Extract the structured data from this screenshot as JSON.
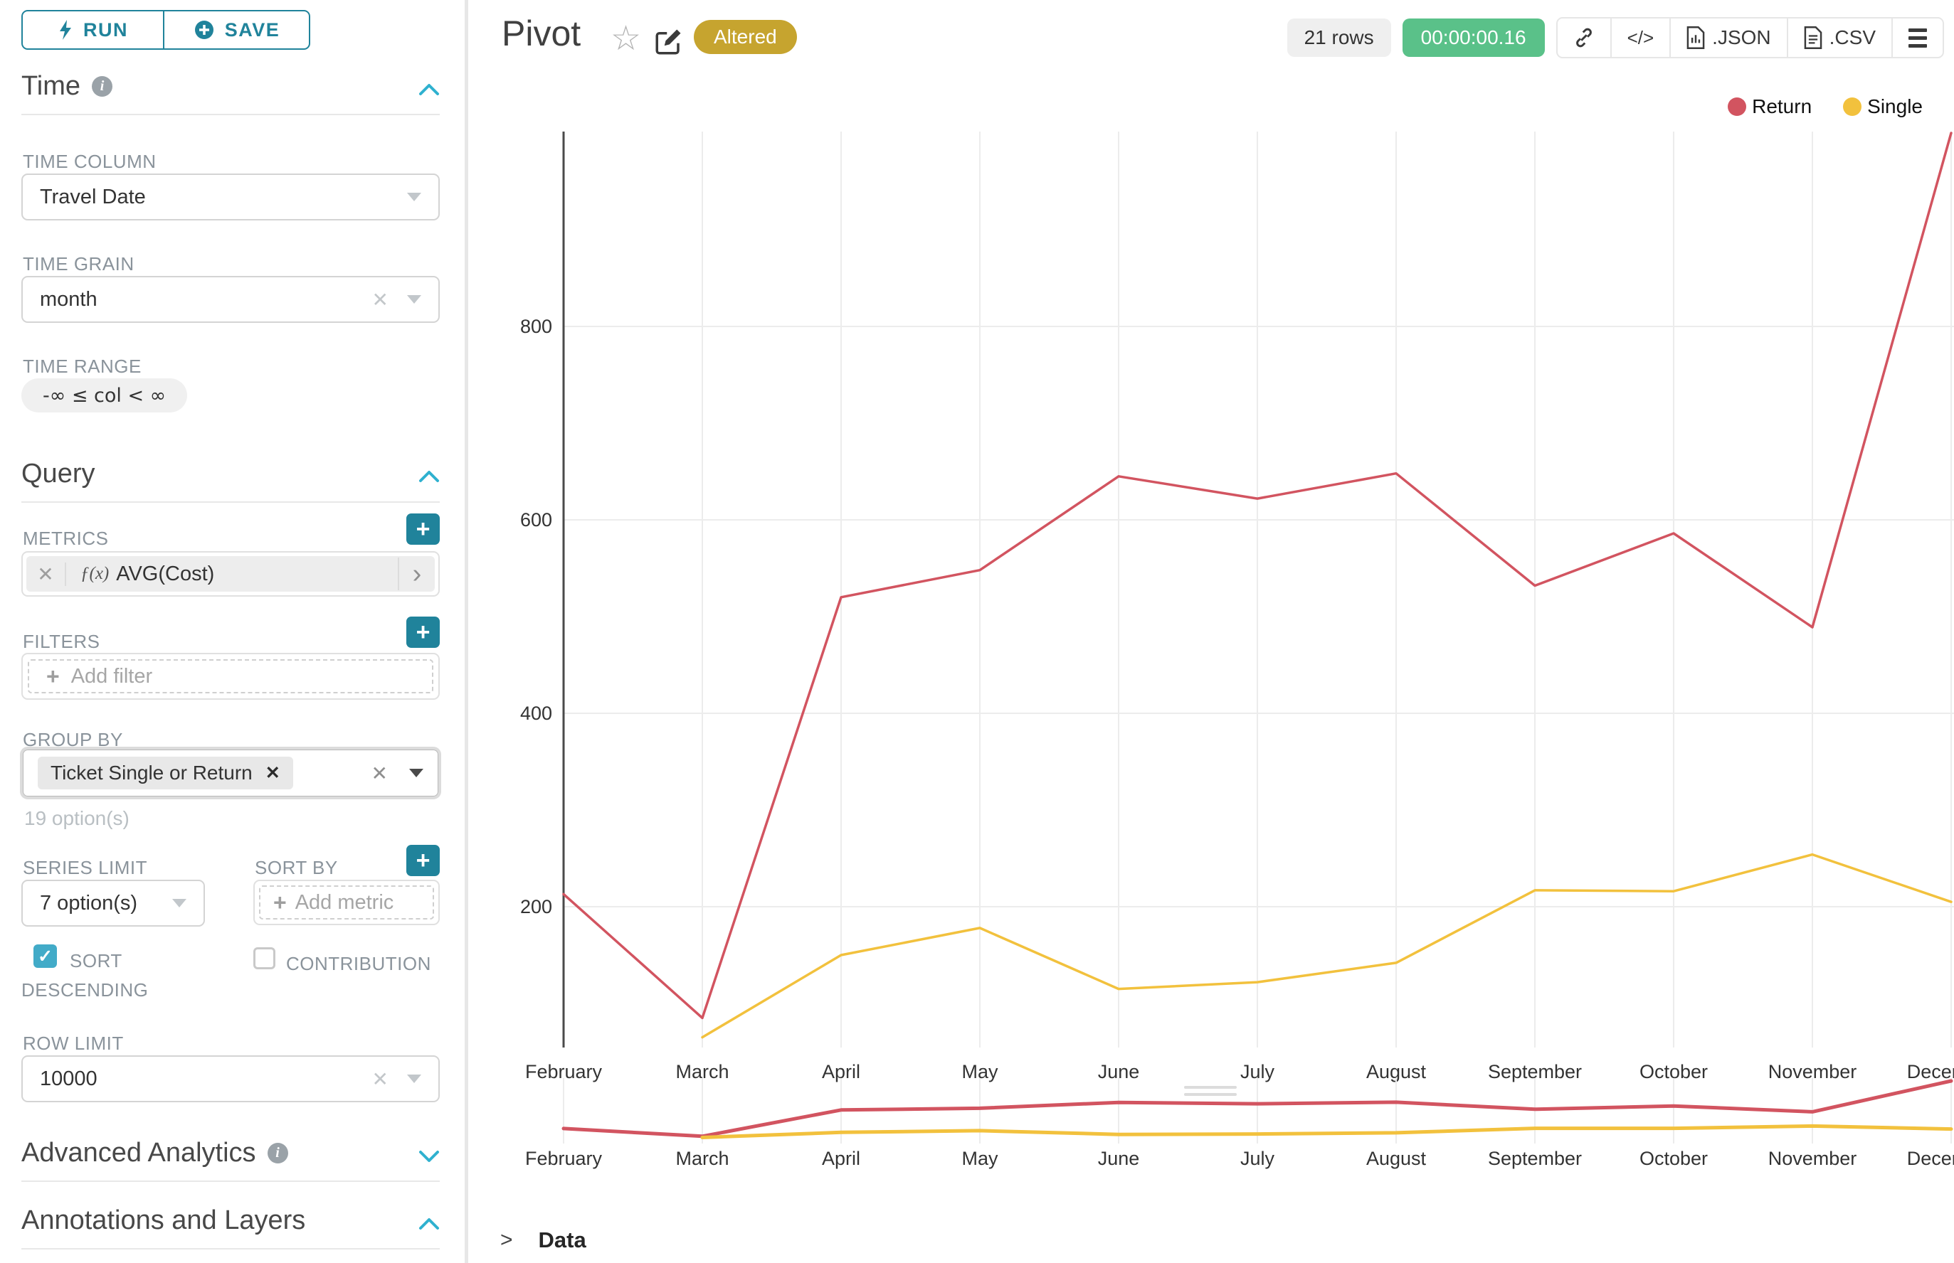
{
  "colors": {
    "primary": "#20839b",
    "primary_light": "#42abc8",
    "badge_gold": "#c6a42f",
    "timer_green": "#5ac189",
    "series_return": "#d25460",
    "series_single": "#f2c13d"
  },
  "sidebar": {
    "run_label": "RUN",
    "save_label": "SAVE",
    "time_section": "Time",
    "time_column": {
      "label": "TIME COLUMN",
      "value": "Travel Date"
    },
    "time_grain": {
      "label": "TIME GRAIN",
      "value": "month"
    },
    "time_range": {
      "label": "TIME RANGE",
      "value": "-∞ ≤ col < ∞"
    },
    "query_section": "Query",
    "metrics": {
      "label": "METRICS",
      "fx": "ƒ(x)",
      "value": "AVG(Cost)"
    },
    "filters": {
      "label": "FILTERS",
      "placeholder": "Add filter"
    },
    "group_by": {
      "label": "GROUP BY",
      "tag": "Ticket Single or Return",
      "hint": "19 option(s)"
    },
    "series_limit": {
      "label": "SERIES LIMIT",
      "value": "7 option(s)"
    },
    "sort_by": {
      "label": "SORT BY",
      "placeholder": "Add metric"
    },
    "sort_descending": {
      "label": "SORT DESCENDING",
      "checked": true
    },
    "contribution": {
      "label": "CONTRIBUTION",
      "checked": false
    },
    "row_limit": {
      "label": "ROW LIMIT",
      "value": "10000"
    },
    "advanced_section": "Advanced Analytics",
    "annotations_section": "Annotations and Layers"
  },
  "header": {
    "title": "Pivot",
    "badge": "Altered",
    "rows": "21 rows",
    "timer": "00:00:00.16",
    "json_label": ".JSON",
    "csv_label": ".CSV",
    "code_glyph": "</>"
  },
  "chart_data": {
    "type": "line",
    "title": "Pivot",
    "x": [
      "February",
      "March",
      "April",
      "May",
      "June",
      "July",
      "August",
      "September",
      "October",
      "November",
      "December"
    ],
    "last_x_label_shown_truncated": "Dece",
    "series": [
      {
        "name": "Return",
        "color": "#d25460",
        "values": [
          213,
          85,
          520,
          548,
          645,
          622,
          648,
          532,
          586,
          489,
          1000
        ]
      },
      {
        "name": "Single",
        "color": "#f2c13d",
        "values": [
          null,
          65,
          150,
          178,
          115,
          122,
          142,
          217,
          216,
          254,
          205
        ]
      }
    ],
    "yticks": [
      200,
      400,
      600,
      800
    ],
    "ylim_visible": [
      50,
      1005
    ],
    "grid": true,
    "legend_position": "top-right",
    "has_mini_range_chart": true
  },
  "footer": {
    "data_label": "Data"
  }
}
